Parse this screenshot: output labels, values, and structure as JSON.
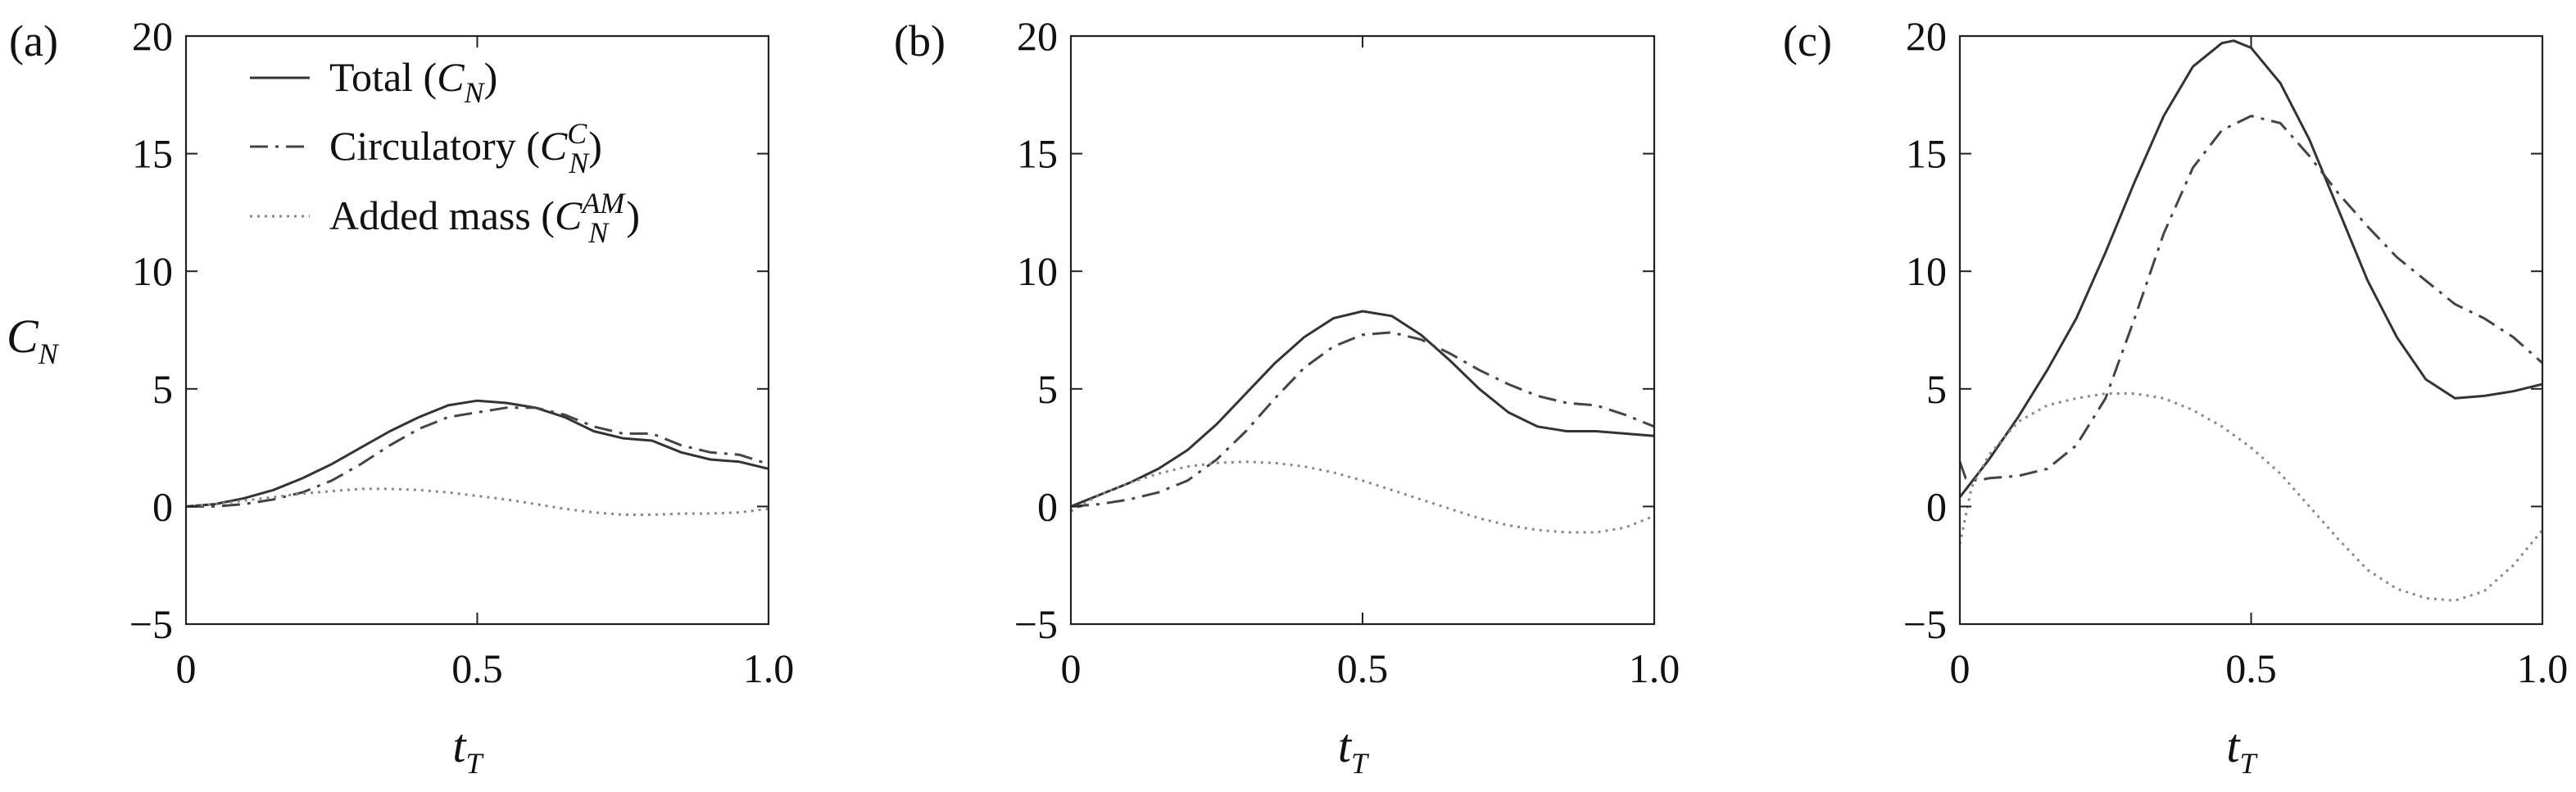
{
  "chart_data": {
    "type": "line",
    "xlabel_text": "t",
    "xlabel_sub": "T",
    "ylabel_text": "C",
    "ylabel_sub": "N",
    "xlim": [
      0,
      1.0
    ],
    "ylim": [
      -5,
      20
    ],
    "x_ticks": [
      "0",
      "0.5",
      "1.0"
    ],
    "y_ticks": [
      "−5",
      "0",
      "5",
      "10",
      "15",
      "20"
    ],
    "legend_location": "upper-left of panel (a)",
    "legend": [
      {
        "key": "total",
        "prefix": "Total (",
        "sym": "C",
        "sub": "N",
        "sup": "",
        "suffix": ")",
        "style": "solid",
        "color": "#333333"
      },
      {
        "key": "circulatory",
        "prefix": "Circulatory (",
        "sym": "C",
        "sub": "N",
        "sup": "C",
        "suffix": ")",
        "style": "dashdot",
        "color": "#444444"
      },
      {
        "key": "added_mass",
        "prefix": "Added mass (",
        "sym": "C",
        "sub": "N",
        "sup": "AM",
        "suffix": ")",
        "style": "dotted",
        "color": "#888888"
      }
    ],
    "panels": [
      {
        "label": "(a)",
        "series": [
          {
            "key": "total",
            "x": [
              0,
              0.05,
              0.1,
              0.15,
              0.2,
              0.25,
              0.3,
              0.35,
              0.4,
              0.45,
              0.5,
              0.55,
              0.6,
              0.65,
              0.7,
              0.75,
              0.8,
              0.85,
              0.9,
              0.95,
              1.0
            ],
            "y": [
              0,
              0.1,
              0.35,
              0.7,
              1.2,
              1.8,
              2.5,
              3.2,
              3.8,
              4.3,
              4.5,
              4.4,
              4.2,
              3.8,
              3.2,
              2.9,
              2.8,
              2.3,
              2.0,
              1.9,
              1.6
            ]
          },
          {
            "key": "circulatory",
            "x": [
              0,
              0.05,
              0.1,
              0.15,
              0.2,
              0.25,
              0.3,
              0.35,
              0.4,
              0.45,
              0.5,
              0.55,
              0.6,
              0.65,
              0.7,
              0.75,
              0.8,
              0.85,
              0.9,
              0.95,
              1.0
            ],
            "y": [
              0,
              0.0,
              0.1,
              0.3,
              0.6,
              1.1,
              1.8,
              2.6,
              3.3,
              3.8,
              4.0,
              4.2,
              4.2,
              3.9,
              3.4,
              3.1,
              3.1,
              2.6,
              2.3,
              2.2,
              1.8
            ]
          },
          {
            "key": "added_mass",
            "x": [
              0,
              0.05,
              0.1,
              0.15,
              0.2,
              0.25,
              0.3,
              0.35,
              0.4,
              0.45,
              0.5,
              0.55,
              0.6,
              0.65,
              0.7,
              0.75,
              0.8,
              0.85,
              0.9,
              0.95,
              1.0
            ],
            "y": [
              0,
              0.1,
              0.25,
              0.4,
              0.55,
              0.65,
              0.75,
              0.75,
              0.7,
              0.6,
              0.45,
              0.3,
              0.1,
              -0.1,
              -0.25,
              -0.35,
              -0.35,
              -0.3,
              -0.3,
              -0.25,
              -0.1
            ]
          }
        ]
      },
      {
        "label": "(b)",
        "series": [
          {
            "key": "total",
            "x": [
              0,
              0.05,
              0.1,
              0.15,
              0.2,
              0.25,
              0.3,
              0.35,
              0.4,
              0.45,
              0.5,
              0.55,
              0.6,
              0.65,
              0.7,
              0.75,
              0.8,
              0.85,
              0.9,
              0.95,
              1.0
            ],
            "y": [
              0,
              0.5,
              1.0,
              1.6,
              2.4,
              3.5,
              4.8,
              6.1,
              7.2,
              8.0,
              8.3,
              8.1,
              7.3,
              6.2,
              5.0,
              4.0,
              3.4,
              3.2,
              3.2,
              3.1,
              3.0
            ]
          },
          {
            "key": "circulatory",
            "x": [
              0,
              0.05,
              0.1,
              0.15,
              0.2,
              0.25,
              0.3,
              0.35,
              0.4,
              0.45,
              0.5,
              0.55,
              0.6,
              0.65,
              0.7,
              0.75,
              0.8,
              0.85,
              0.9,
              0.95,
              1.0
            ],
            "y": [
              0,
              0.1,
              0.3,
              0.6,
              1.1,
              2.0,
              3.2,
              4.6,
              5.9,
              6.8,
              7.3,
              7.4,
              7.1,
              6.5,
              5.8,
              5.2,
              4.7,
              4.4,
              4.3,
              3.9,
              3.4
            ]
          },
          {
            "key": "added_mass",
            "x": [
              0,
              0.05,
              0.1,
              0.15,
              0.2,
              0.25,
              0.3,
              0.35,
              0.4,
              0.45,
              0.5,
              0.55,
              0.6,
              0.65,
              0.7,
              0.75,
              0.8,
              0.85,
              0.9,
              0.95,
              1.0
            ],
            "y": [
              -0.2,
              0.5,
              1.0,
              1.4,
              1.7,
              1.85,
              1.9,
              1.85,
              1.7,
              1.45,
              1.1,
              0.7,
              0.3,
              -0.1,
              -0.5,
              -0.8,
              -1.0,
              -1.1,
              -1.1,
              -0.9,
              -0.4
            ]
          }
        ]
      },
      {
        "label": "(c)",
        "series": [
          {
            "key": "total",
            "x": [
              0,
              0.05,
              0.1,
              0.15,
              0.2,
              0.25,
              0.3,
              0.35,
              0.4,
              0.45,
              0.47,
              0.5,
              0.55,
              0.6,
              0.65,
              0.7,
              0.75,
              0.8,
              0.85,
              0.9,
              0.95,
              1.0
            ],
            "y": [
              0.4,
              2.0,
              3.8,
              5.8,
              8.0,
              10.8,
              13.8,
              16.6,
              18.7,
              19.7,
              19.8,
              19.5,
              18.0,
              15.6,
              12.6,
              9.6,
              7.2,
              5.4,
              4.6,
              4.7,
              4.9,
              5.2
            ]
          },
          {
            "key": "circulatory",
            "x": [
              0,
              0.01,
              0.03,
              0.05,
              0.1,
              0.15,
              0.2,
              0.25,
              0.3,
              0.35,
              0.4,
              0.45,
              0.5,
              0.55,
              0.6,
              0.65,
              0.7,
              0.75,
              0.8,
              0.85,
              0.9,
              0.95,
              1.0
            ],
            "y": [
              1.9,
              1.2,
              1.1,
              1.2,
              1.3,
              1.6,
              2.6,
              4.6,
              8.0,
              11.6,
              14.4,
              16.0,
              16.6,
              16.3,
              14.9,
              13.3,
              11.9,
              10.6,
              9.6,
              8.6,
              8.0,
              7.2,
              6.1
            ]
          },
          {
            "key": "added_mass",
            "x": [
              0,
              0.02,
              0.05,
              0.1,
              0.15,
              0.2,
              0.25,
              0.3,
              0.35,
              0.4,
              0.45,
              0.5,
              0.55,
              0.6,
              0.65,
              0.7,
              0.75,
              0.8,
              0.85,
              0.9,
              0.95,
              1.0
            ],
            "y": [
              -1.6,
              0.8,
              2.2,
              3.6,
              4.3,
              4.6,
              4.8,
              4.8,
              4.6,
              4.1,
              3.4,
              2.5,
              1.4,
              0.0,
              -1.4,
              -2.7,
              -3.5,
              -3.9,
              -4.0,
              -3.6,
              -2.5,
              -1.0
            ]
          }
        ]
      }
    ]
  }
}
